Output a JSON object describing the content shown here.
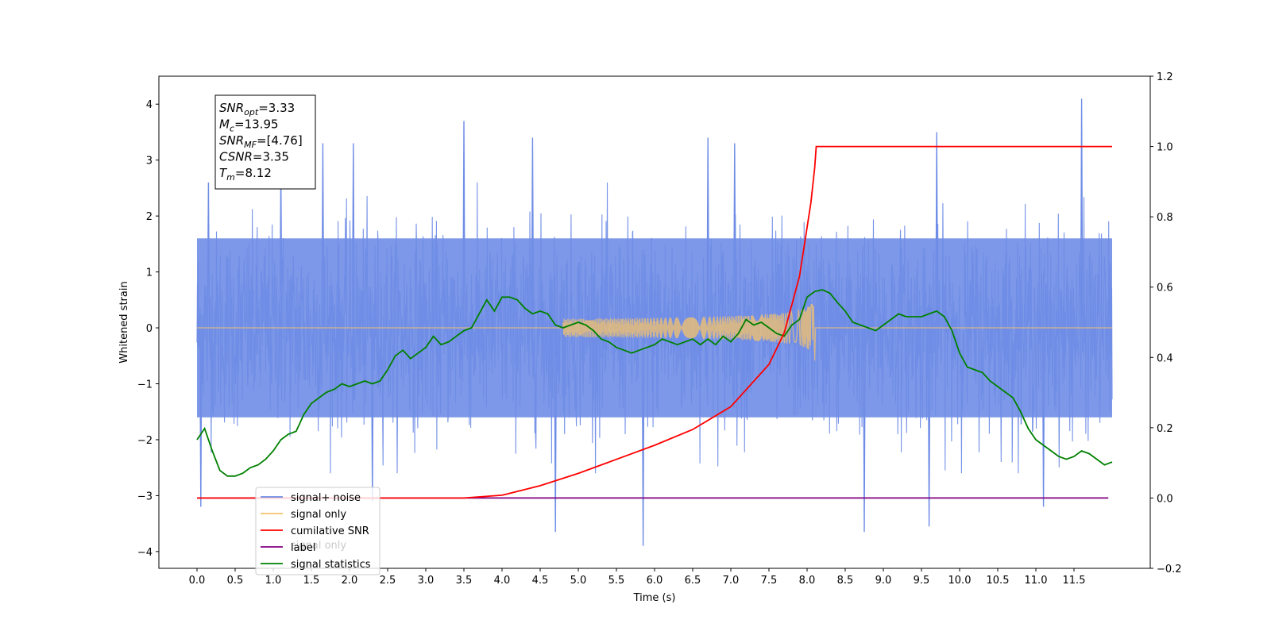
{
  "chart_data": {
    "type": "line",
    "xlabel": "Time (s)",
    "ylabel": "Whitened strain",
    "xlim": [
      -0.5,
      12.5
    ],
    "ylim": [
      -4.3,
      4.5
    ],
    "y2lim": [
      -0.2,
      1.2
    ],
    "x_ticks": [
      0.0,
      0.5,
      1.0,
      1.5,
      2.0,
      2.5,
      3.0,
      3.5,
      4.0,
      4.5,
      5.0,
      5.5,
      6.0,
      6.5,
      7.0,
      7.5,
      8.0,
      8.5,
      9.0,
      9.5,
      10.0,
      10.5,
      11.0,
      11.5
    ],
    "x_tick_labels": [
      "0.0",
      "0.5",
      "1.0",
      "1.5",
      "2.0",
      "2.5",
      "3.0",
      "3.5",
      "4.0",
      "4.5",
      "5.0",
      "5.5",
      "6.0",
      "6.5",
      "7.0",
      "7.5",
      "8.0",
      "8.5",
      "9.0",
      "9.5",
      "10.0",
      "10.5",
      "11.0",
      "11.5"
    ],
    "y_ticks": [
      -4,
      -3,
      -2,
      -1,
      0,
      1,
      2,
      3,
      4
    ],
    "y_tick_labels": [
      "−4",
      "−3",
      "−2",
      "−1",
      "0",
      "1",
      "2",
      "3",
      "4"
    ],
    "y2_ticks": [
      -0.2,
      0.0,
      0.2,
      0.4,
      0.6,
      0.8,
      1.0,
      1.2
    ],
    "y2_tick_labels": [
      "−0.2",
      "0.0",
      "0.2",
      "0.4",
      "0.6",
      "0.8",
      "1.0",
      "1.2"
    ],
    "grid": false,
    "legend_position": "lower-left",
    "legend": [
      {
        "label": "signal+ noise",
        "color": "#6f8de6"
      },
      {
        "label": "signal only",
        "color": "#f5c36b"
      },
      {
        "label": "cumilative SNR",
        "color": "#ff0000"
      },
      {
        "label": "label",
        "color": "#800080"
      },
      {
        "label": "signal statistics",
        "color": "#008000"
      }
    ],
    "legend_ghost_text": "signal only",
    "annotation_box": {
      "position": "top-left",
      "lines": [
        {
          "base": "SNR",
          "sub": "opt",
          "rest": "=3.33"
        },
        {
          "base": "M",
          "sub": "c",
          "rest": "=13.95"
        },
        {
          "base": "SNR",
          "sub": "MF",
          "rest": "=[4.76]"
        },
        {
          "base": "CSNR",
          "sub": "",
          "rest": "=3.35"
        },
        {
          "base": "T",
          "sub": "m",
          "rest": "=8.12"
        }
      ]
    },
    "series": [
      {
        "name": "signal+ noise",
        "axis": "left",
        "color": "#6f8de6",
        "x_range": [
          0.0,
          12.0
        ],
        "envelope_core": 1.6,
        "peaks": [
          {
            "x": 0.15,
            "y": 2.6
          },
          {
            "x": 1.1,
            "y": 2.9
          },
          {
            "x": 1.65,
            "y": 3.3
          },
          {
            "x": 2.05,
            "y": 3.3
          },
          {
            "x": 3.5,
            "y": 3.7
          },
          {
            "x": 4.4,
            "y": 3.4
          },
          {
            "x": 6.7,
            "y": 3.4
          },
          {
            "x": 7.05,
            "y": 3.3
          },
          {
            "x": 9.7,
            "y": 3.5
          },
          {
            "x": 11.6,
            "y": 4.1
          }
        ],
        "troughs": [
          {
            "x": 0.05,
            "y": -3.2
          },
          {
            "x": 2.3,
            "y": -3.1
          },
          {
            "x": 4.7,
            "y": -3.65
          },
          {
            "x": 5.85,
            "y": -3.9
          },
          {
            "x": 8.75,
            "y": -3.65
          },
          {
            "x": 9.6,
            "y": -3.55
          },
          {
            "x": 11.1,
            "y": -3.2
          }
        ]
      },
      {
        "name": "signal only",
        "axis": "left",
        "color": "#f5c36b",
        "chirp": {
          "start": 4.8,
          "merger": 8.1,
          "peak_amplitude": 0.65
        }
      },
      {
        "name": "cumilative SNR",
        "axis": "right",
        "color": "#ff0000",
        "x": [
          0.0,
          3.5,
          4.0,
          4.5,
          5.0,
          5.5,
          6.0,
          6.5,
          7.0,
          7.5,
          7.7,
          7.9,
          8.05,
          8.1,
          8.12,
          12.0
        ],
        "y": [
          0.0,
          0.0,
          0.008,
          0.035,
          0.07,
          0.11,
          0.15,
          0.195,
          0.26,
          0.38,
          0.47,
          0.63,
          0.84,
          0.94,
          1.0,
          1.0
        ]
      },
      {
        "name": "label",
        "axis": "right",
        "color": "#800080",
        "x": [
          0.0,
          11.95
        ],
        "y": [
          0.0,
          0.0
        ]
      },
      {
        "name": "signal statistics",
        "axis": "left",
        "color": "#008000",
        "x": [
          0.0,
          0.1,
          0.2,
          0.3,
          0.4,
          0.5,
          0.6,
          0.7,
          0.8,
          0.9,
          1.0,
          1.1,
          1.2,
          1.3,
          1.4,
          1.5,
          1.6,
          1.7,
          1.8,
          1.9,
          2.0,
          2.1,
          2.2,
          2.3,
          2.4,
          2.5,
          2.6,
          2.7,
          2.8,
          2.9,
          3.0,
          3.1,
          3.2,
          3.3,
          3.4,
          3.5,
          3.6,
          3.7,
          3.8,
          3.9,
          4.0,
          4.1,
          4.2,
          4.3,
          4.4,
          4.5,
          4.6,
          4.7,
          4.8,
          4.9,
          5.0,
          5.1,
          5.2,
          5.3,
          5.4,
          5.5,
          5.6,
          5.7,
          5.8,
          5.9,
          6.0,
          6.1,
          6.2,
          6.3,
          6.4,
          6.5,
          6.6,
          6.7,
          6.8,
          6.9,
          7.0,
          7.1,
          7.2,
          7.3,
          7.4,
          7.5,
          7.6,
          7.7,
          7.8,
          7.9,
          8.0,
          8.1,
          8.2,
          8.3,
          8.4,
          8.5,
          8.6,
          8.7,
          8.8,
          8.9,
          9.0,
          9.1,
          9.2,
          9.3,
          9.4,
          9.5,
          9.6,
          9.7,
          9.8,
          9.9,
          10.0,
          10.1,
          10.2,
          10.3,
          10.4,
          10.5,
          10.6,
          10.7,
          10.8,
          10.9,
          11.0,
          11.1,
          11.2,
          11.3,
          11.4,
          11.5,
          11.6,
          11.7,
          11.8,
          11.9,
          12.0
        ],
        "y": [
          -2.0,
          -1.8,
          -2.2,
          -2.55,
          -2.65,
          -2.65,
          -2.6,
          -2.5,
          -2.45,
          -2.35,
          -2.2,
          -2.0,
          -1.9,
          -1.85,
          -1.55,
          -1.35,
          -1.25,
          -1.15,
          -1.1,
          -1.0,
          -1.05,
          -1.0,
          -0.95,
          -1.0,
          -0.95,
          -0.75,
          -0.5,
          -0.4,
          -0.55,
          -0.45,
          -0.35,
          -0.15,
          -0.3,
          -0.25,
          -0.15,
          -0.05,
          0.0,
          0.25,
          0.5,
          0.3,
          0.55,
          0.55,
          0.5,
          0.35,
          0.25,
          0.3,
          0.25,
          0.05,
          0.0,
          0.05,
          0.1,
          0.05,
          -0.05,
          -0.2,
          -0.25,
          -0.35,
          -0.4,
          -0.45,
          -0.4,
          -0.35,
          -0.3,
          -0.2,
          -0.25,
          -0.3,
          -0.25,
          -0.2,
          -0.3,
          -0.2,
          -0.3,
          -0.15,
          -0.25,
          -0.1,
          0.15,
          0.05,
          0.1,
          0.0,
          -0.1,
          -0.15,
          0.05,
          0.15,
          0.55,
          0.65,
          0.68,
          0.62,
          0.45,
          0.3,
          0.1,
          0.05,
          0.0,
          -0.05,
          0.05,
          0.15,
          0.25,
          0.2,
          0.2,
          0.2,
          0.25,
          0.3,
          0.2,
          -0.05,
          -0.45,
          -0.7,
          -0.75,
          -0.8,
          -0.95,
          -1.05,
          -1.15,
          -1.25,
          -1.5,
          -1.8,
          -2.0,
          -2.1,
          -2.2,
          -2.3,
          -2.35,
          -2.3,
          -2.2,
          -2.25,
          -2.35,
          -2.45,
          -2.4
        ]
      }
    ]
  }
}
